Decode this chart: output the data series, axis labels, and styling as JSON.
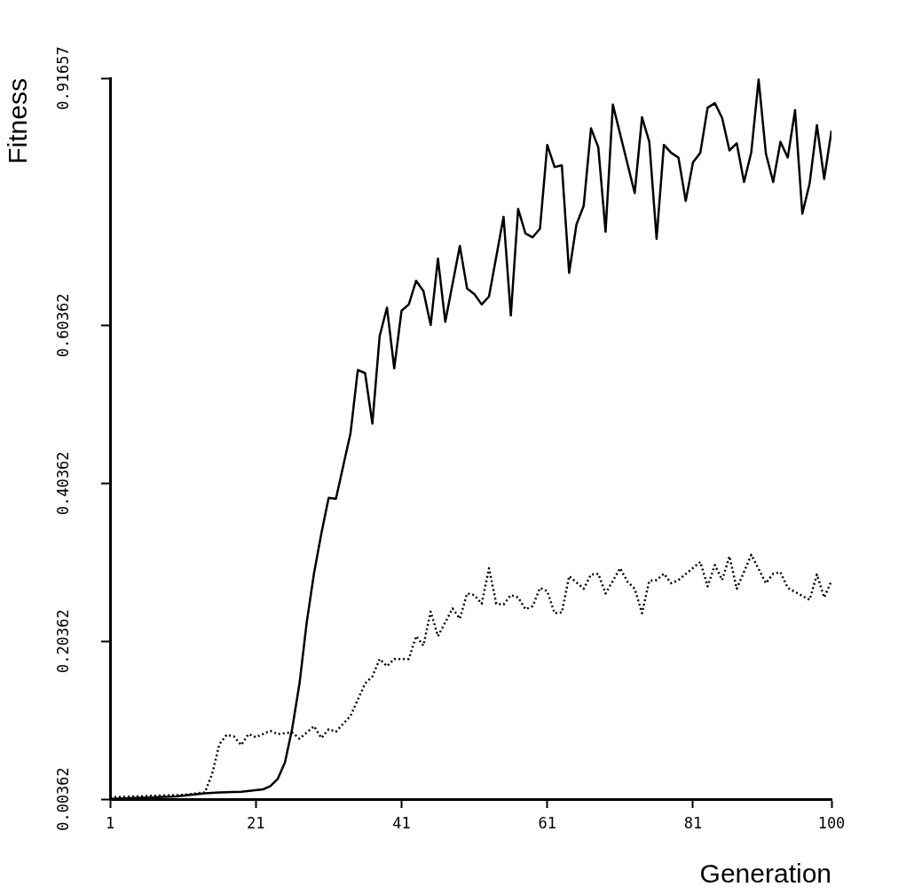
{
  "chart_data": {
    "type": "line",
    "xlabel": "Generation",
    "ylabel": "Fitness",
    "xlim": [
      1,
      100
    ],
    "xticks": [
      1,
      21,
      41,
      61,
      81,
      100
    ],
    "ylim": [
      0.00362,
      0.91657
    ],
    "yticks": [
      0.00362,
      0.20362,
      0.40362,
      0.60362,
      0.91657
    ],
    "grid": false,
    "legend": false,
    "marker": "none",
    "series": [
      {
        "color": "#000000",
        "line_style": "solid",
        "x": [
          1,
          10,
          14,
          16,
          19,
          22,
          23,
          24,
          25,
          26,
          27,
          28,
          29,
          30,
          31,
          32,
          34,
          35,
          36,
          37,
          38,
          39,
          40,
          41,
          42,
          43,
          44,
          45,
          46,
          47,
          49,
          50,
          51,
          52,
          53,
          55,
          56,
          57,
          58,
          59,
          60,
          61,
          62,
          63,
          64,
          65,
          66,
          67,
          68,
          69,
          70,
          73,
          74,
          75,
          76,
          77,
          78,
          79,
          80,
          81,
          82,
          83,
          84,
          85,
          86,
          87,
          88,
          89,
          90,
          91,
          92,
          93,
          94,
          95,
          96,
          97,
          98,
          99,
          100
        ],
        "values": [
          0.004,
          0.007,
          0.011,
          0.012,
          0.013,
          0.016,
          0.02,
          0.029,
          0.05,
          0.093,
          0.15,
          0.228,
          0.29,
          0.34,
          0.385,
          0.384,
          0.467,
          0.547,
          0.543,
          0.479,
          0.59,
          0.626,
          0.549,
          0.622,
          0.63,
          0.66,
          0.647,
          0.604,
          0.688,
          0.608,
          0.704,
          0.65,
          0.643,
          0.63,
          0.64,
          0.741,
          0.616,
          0.751,
          0.72,
          0.715,
          0.726,
          0.832,
          0.804,
          0.806,
          0.67,
          0.731,
          0.755,
          0.853,
          0.829,
          0.722,
          0.883,
          0.771,
          0.867,
          0.836,
          0.713,
          0.832,
          0.822,
          0.816,
          0.761,
          0.81,
          0.822,
          0.879,
          0.885,
          0.866,
          0.825,
          0.834,
          0.785,
          0.823,
          0.915,
          0.821,
          0.785,
          0.836,
          0.816,
          0.876,
          0.745,
          0.783,
          0.857,
          0.789,
          0.85
        ]
      },
      {
        "color": "#000000",
        "line_style": "dotted",
        "x": [
          1,
          11,
          14,
          15,
          16,
          17,
          18,
          19,
          20,
          21,
          23,
          24,
          26,
          27,
          29,
          30,
          31,
          32,
          34,
          36,
          37,
          38,
          39,
          40,
          42,
          43,
          44,
          45,
          46,
          48,
          49,
          50,
          51,
          52,
          53,
          54,
          55,
          56,
          57,
          58,
          59,
          60,
          61,
          62,
          63,
          64,
          66,
          67,
          68,
          69,
          71,
          72,
          73,
          74,
          75,
          76,
          77,
          78,
          79,
          82,
          83,
          84,
          85,
          86,
          87,
          89,
          91,
          92,
          93,
          94,
          97,
          98,
          99,
          100
        ],
        "values": [
          0.006,
          0.009,
          0.012,
          0.035,
          0.073,
          0.085,
          0.083,
          0.072,
          0.086,
          0.082,
          0.09,
          0.086,
          0.088,
          0.08,
          0.096,
          0.081,
          0.092,
          0.089,
          0.109,
          0.15,
          0.159,
          0.181,
          0.172,
          0.181,
          0.181,
          0.21,
          0.198,
          0.241,
          0.21,
          0.245,
          0.232,
          0.264,
          0.262,
          0.251,
          0.296,
          0.251,
          0.25,
          0.262,
          0.259,
          0.244,
          0.248,
          0.271,
          0.267,
          0.239,
          0.24,
          0.286,
          0.27,
          0.288,
          0.289,
          0.264,
          0.296,
          0.279,
          0.27,
          0.239,
          0.28,
          0.281,
          0.289,
          0.277,
          0.281,
          0.304,
          0.273,
          0.3,
          0.281,
          0.311,
          0.27,
          0.313,
          0.277,
          0.289,
          0.291,
          0.271,
          0.256,
          0.288,
          0.259,
          0.28
        ]
      }
    ]
  }
}
